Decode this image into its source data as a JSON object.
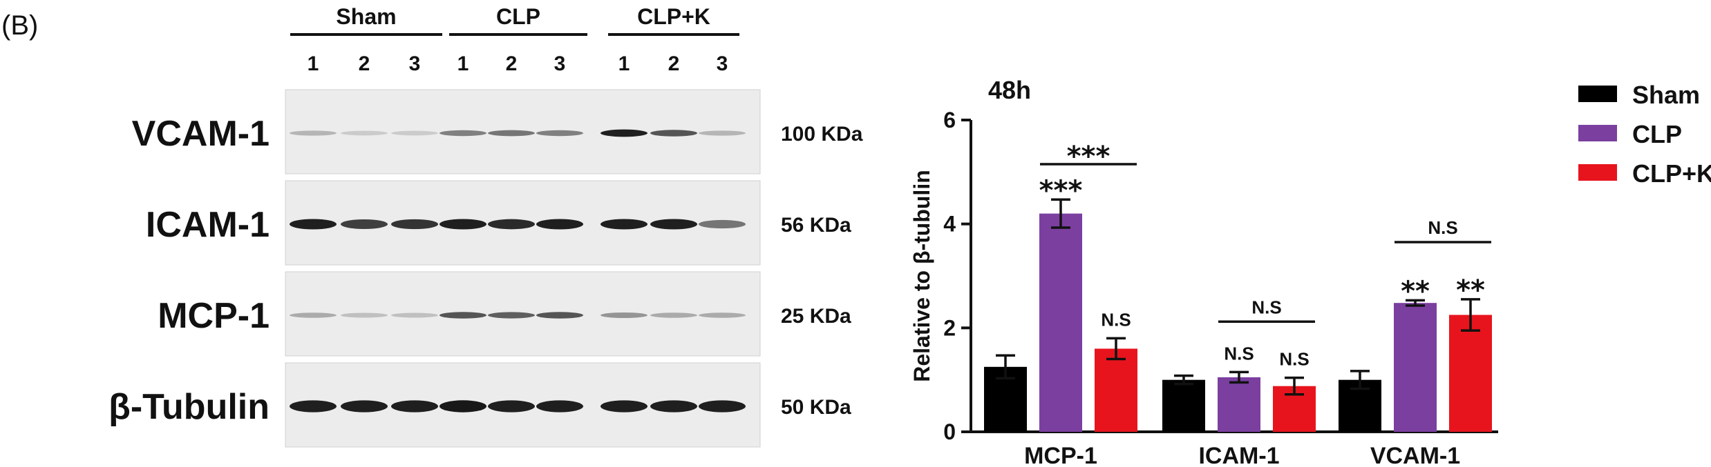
{
  "figure": {
    "panel_label": "(B)",
    "groups": [
      "Sham",
      "CLP",
      "CLP+K"
    ],
    "lanes": [
      "1",
      "2",
      "3",
      "1",
      "2",
      "3",
      "1",
      "2",
      "3"
    ]
  },
  "blot": {
    "rows": [
      {
        "protein": "VCAM-1",
        "size": "100 KDa",
        "intensity": [
          0.25,
          0.15,
          0.15,
          0.5,
          0.55,
          0.5,
          0.95,
          0.7,
          0.25
        ]
      },
      {
        "protein": "ICAM-1",
        "size": "56 KDa",
        "intensity": [
          0.95,
          0.8,
          0.85,
          0.95,
          0.9,
          0.95,
          0.95,
          0.95,
          0.55
        ]
      },
      {
        "protein": "MCP-1",
        "size": "25 KDa",
        "intensity": [
          0.3,
          0.2,
          0.2,
          0.7,
          0.65,
          0.7,
          0.4,
          0.3,
          0.3
        ]
      },
      {
        "protein": "β-Tubulin",
        "size": "50 KDa",
        "intensity": [
          0.95,
          0.95,
          0.95,
          0.98,
          0.95,
          0.95,
          0.95,
          0.95,
          0.95
        ]
      }
    ]
  },
  "chart_data": {
    "type": "bar",
    "title": "48h",
    "ylabel": "Relative to β-tubulin",
    "xlabel": "",
    "ylim": [
      0,
      6
    ],
    "yticks": [
      0,
      2,
      4,
      6
    ],
    "categories": [
      "MCP-1",
      "ICAM-1",
      "VCAM-1"
    ],
    "series": [
      {
        "name": "Sham",
        "color": "#000000",
        "values": [
          1.25,
          1.0,
          1.0
        ],
        "errors": [
          0.22,
          0.08,
          0.17
        ]
      },
      {
        "name": "CLP",
        "color": "#7b3fa0",
        "values": [
          4.2,
          1.05,
          2.48
        ],
        "errors": [
          0.27,
          0.1,
          0.05
        ]
      },
      {
        "name": "CLP+K",
        "color": "#e8141d",
        "values": [
          1.6,
          0.88,
          2.25
        ],
        "errors": [
          0.2,
          0.16,
          0.3
        ]
      }
    ],
    "legend_position": "top-right",
    "annotations": [
      {
        "text": "***",
        "category": 0,
        "series": 1
      },
      {
        "text": "***",
        "category": 0,
        "bracket": [
          1,
          2
        ],
        "y": 5.15
      },
      {
        "text": "N.S",
        "category": 0,
        "series": 2
      },
      {
        "text": "N.S",
        "category": 1,
        "series": 1
      },
      {
        "text": "N.S",
        "category": 1,
        "series": 2
      },
      {
        "text": "N.S",
        "category": 1,
        "bracket": [
          1,
          2
        ],
        "y": 2.12
      },
      {
        "text": "**",
        "category": 2,
        "series": 1
      },
      {
        "text": "**",
        "category": 2,
        "series": 2
      },
      {
        "text": "N.S",
        "category": 2,
        "bracket": [
          1,
          2
        ],
        "y": 3.65
      }
    ]
  }
}
